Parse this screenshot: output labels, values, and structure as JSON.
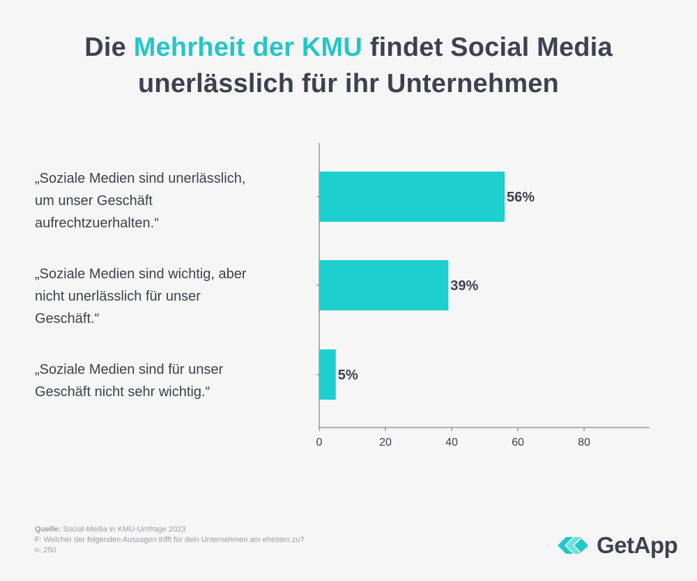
{
  "header": {
    "title_before": "Die ",
    "title_accent": "Mehrheit der KMU",
    "title_after": " findet Social Media",
    "title_line2": "unerlässlich für ihr Unternehmen"
  },
  "chart_data": {
    "type": "bar",
    "orientation": "horizontal",
    "categories": [
      "„Soziale Medien sind unerlässlich, um unser Geschäft aufrechtzuerhalten.“",
      "„Soziale Medien sind wichtig, aber nicht unerlässlich für unser Geschäft.“",
      "„Soziale Medien sind für unser Geschäft nicht sehr wichtig.“"
    ],
    "category_lines": [
      [
        "„Soziale Medien sind unerlässlich,",
        "um unser Geschäft",
        "aufrechtzuerhalten.“"
      ],
      [
        "„Soziale Medien sind wichtig, aber",
        "nicht unerlässlich für unser",
        "Geschäft.“"
      ],
      [
        "„Soziale Medien sind für unser",
        "Geschäft nicht sehr wichtig.“"
      ]
    ],
    "values": [
      56,
      39,
      5
    ],
    "data_labels": [
      "56%",
      "39%",
      "5%"
    ],
    "xlim": [
      0,
      100
    ],
    "xticks": [
      0,
      20,
      40,
      60,
      80
    ],
    "xtick_labels": [
      "0",
      "20",
      "40",
      "60",
      "80"
    ],
    "grid": false,
    "bar_color": "#1dcfcf"
  },
  "footer": {
    "source_key": "Quelle:",
    "source_value": " Social-Media in KMU-Umfrage 2023",
    "question": "F: Welcher der folgenden Aussagen trifft für dein Unternehmen am ehesten zu?",
    "n": "n: 250"
  },
  "logo": {
    "text": "GetApp",
    "colors": [
      "#22c7c7",
      "#6fe0de"
    ]
  }
}
